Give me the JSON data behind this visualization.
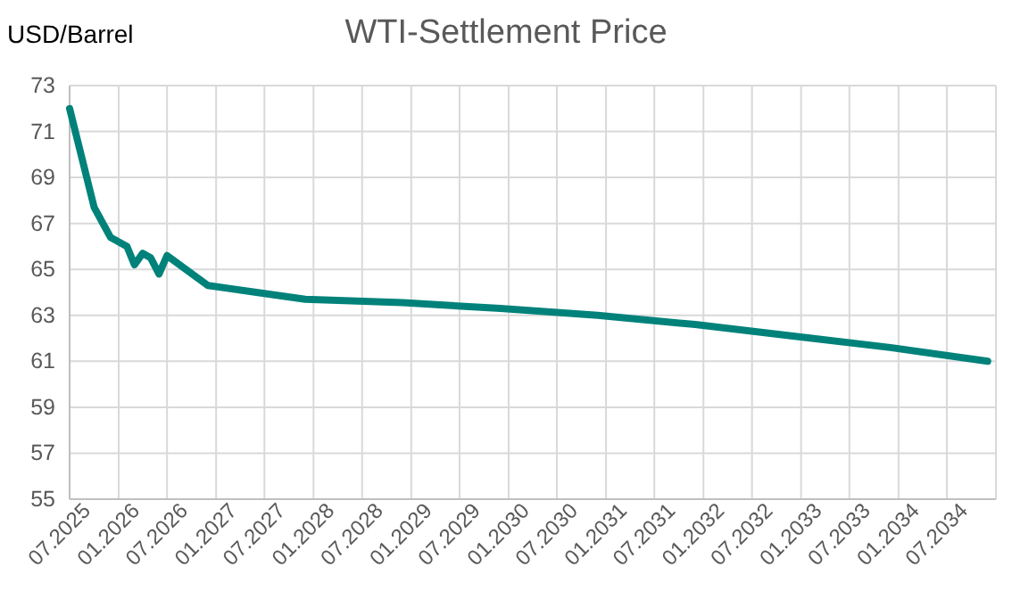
{
  "chart_data": {
    "type": "line",
    "title": "WTI-Settlement Price",
    "ylabel": "USD/Barrel",
    "x": [
      "2025-07",
      "2025-10",
      "2025-12",
      "2026-02",
      "2026-03",
      "2026-04",
      "2026-05",
      "2026-06",
      "2026-07",
      "2026-12",
      "2027-06",
      "2027-12",
      "2028-12",
      "2029-12",
      "2030-12",
      "2031-12",
      "2032-12",
      "2033-12",
      "2034-12"
    ],
    "series": [
      {
        "color": "#00827a",
        "values": [
          72.0,
          67.7,
          66.4,
          66.0,
          65.2,
          65.7,
          65.5,
          64.8,
          65.6,
          64.3,
          64.0,
          63.7,
          63.55,
          63.3,
          63.0,
          62.6,
          62.1,
          61.6,
          61.0
        ]
      }
    ],
    "xlim": [
      "2025-07",
      "2035-01"
    ],
    "xticks": [
      {
        "value": "2025-07",
        "label": "07.2025"
      },
      {
        "value": "2026-01",
        "label": "01.2026"
      },
      {
        "value": "2026-07",
        "label": "07.2026"
      },
      {
        "value": "2027-01",
        "label": "01.2027"
      },
      {
        "value": "2027-07",
        "label": "07.2027"
      },
      {
        "value": "2028-01",
        "label": "01.2028"
      },
      {
        "value": "2028-07",
        "label": "07.2028"
      },
      {
        "value": "2029-01",
        "label": "01.2029"
      },
      {
        "value": "2029-07",
        "label": "07.2029"
      },
      {
        "value": "2030-01",
        "label": "01.2030"
      },
      {
        "value": "2030-07",
        "label": "07.2030"
      },
      {
        "value": "2031-01",
        "label": "01.2031"
      },
      {
        "value": "2031-07",
        "label": "07.2031"
      },
      {
        "value": "2032-01",
        "label": "01.2032"
      },
      {
        "value": "2032-07",
        "label": "07.2032"
      },
      {
        "value": "2033-01",
        "label": "01.2033"
      },
      {
        "value": "2033-07",
        "label": "07.2033"
      },
      {
        "value": "2034-01",
        "label": "01.2034"
      },
      {
        "value": "2034-07",
        "label": "07.2034"
      },
      {
        "value": "2035-01",
        "label": null
      }
    ],
    "ylim": [
      55,
      73
    ],
    "yticks": [
      55,
      57,
      59,
      61,
      63,
      65,
      67,
      69,
      71,
      73
    ],
    "grid": true,
    "line_style": "solid",
    "marker": "none"
  }
}
